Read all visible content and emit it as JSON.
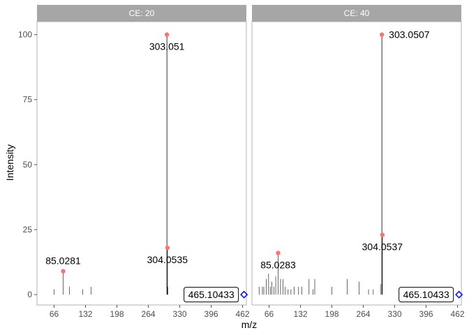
{
  "chart_data": {
    "type": "spectrum",
    "xlabel": "m/z",
    "ylabel": "Intensity",
    "xlim": [
      30,
      470
    ],
    "ylim": [
      -4,
      105
    ],
    "x_ticks": [
      66,
      132,
      198,
      264,
      330,
      396,
      462
    ],
    "y_ticks": [
      0,
      25,
      50,
      75,
      100
    ],
    "panels": [
      {
        "title": "CE: 20",
        "sticks": [
          {
            "mz": 66,
            "i": 2
          },
          {
            "mz": 85.0281,
            "i": 9
          },
          {
            "mz": 98,
            "i": 3
          },
          {
            "mz": 126,
            "i": 2
          },
          {
            "mz": 144,
            "i": 3
          },
          {
            "mz": 303.051,
            "i": 100
          },
          {
            "mz": 304.0535,
            "i": 18
          },
          {
            "mz": 305,
            "i": 3
          }
        ],
        "labeled_peaks": [
          {
            "mz": 85.0281,
            "i": 9,
            "label": "85.0281",
            "pos": "above"
          },
          {
            "mz": 303.051,
            "i": 100,
            "label": "303.051",
            "pos": "below"
          },
          {
            "mz": 304.0535,
            "i": 18,
            "label": "304.0535",
            "pos": "below"
          }
        ],
        "precursor": {
          "mz": 465.10433,
          "label": "465.10433"
        }
      },
      {
        "title": "CE: 40",
        "sticks": [
          {
            "mz": 45,
            "i": 3
          },
          {
            "mz": 52,
            "i": 3
          },
          {
            "mz": 55,
            "i": 3
          },
          {
            "mz": 60,
            "i": 6
          },
          {
            "mz": 65,
            "i": 8
          },
          {
            "mz": 69,
            "i": 3
          },
          {
            "mz": 72,
            "i": 5
          },
          {
            "mz": 76,
            "i": 3
          },
          {
            "mz": 80,
            "i": 7
          },
          {
            "mz": 85.0283,
            "i": 16
          },
          {
            "mz": 90,
            "i": 6
          },
          {
            "mz": 95,
            "i": 6
          },
          {
            "mz": 100,
            "i": 3
          },
          {
            "mz": 106,
            "i": 2
          },
          {
            "mz": 112,
            "i": 2
          },
          {
            "mz": 119,
            "i": 3
          },
          {
            "mz": 128,
            "i": 3
          },
          {
            "mz": 135,
            "i": 3
          },
          {
            "mz": 150,
            "i": 6
          },
          {
            "mz": 158,
            "i": 2
          },
          {
            "mz": 162,
            "i": 6
          },
          {
            "mz": 198,
            "i": 3
          },
          {
            "mz": 230,
            "i": 6
          },
          {
            "mz": 255,
            "i": 5
          },
          {
            "mz": 275,
            "i": 2
          },
          {
            "mz": 285,
            "i": 2
          },
          {
            "mz": 301,
            "i": 4
          },
          {
            "mz": 303.0507,
            "i": 100
          },
          {
            "mz": 304.0537,
            "i": 23
          }
        ],
        "labeled_peaks": [
          {
            "mz": 85.0283,
            "i": 16,
            "label": "85.0283",
            "pos": "below"
          },
          {
            "mz": 303.0507,
            "i": 100,
            "label": "303.0507",
            "pos": "right"
          },
          {
            "mz": 304.0537,
            "i": 23,
            "label": "304.0537",
            "pos": "below"
          }
        ],
        "precursor": {
          "mz": 465.10433,
          "label": "465.10433"
        }
      }
    ],
    "colors": {
      "point": "#f8766d",
      "precursor": "#0000ff",
      "strip": "#a6a6a6"
    }
  }
}
